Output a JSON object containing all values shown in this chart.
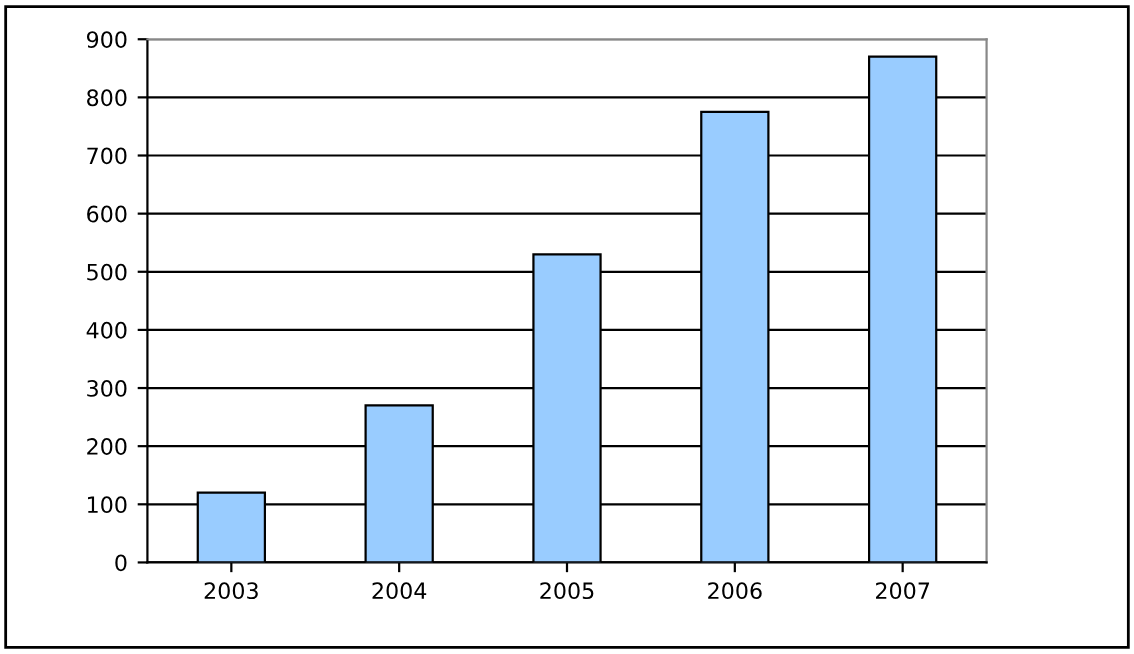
{
  "chart_data": {
    "type": "bar",
    "categories": [
      "2003",
      "2004",
      "2005",
      "2006",
      "2007"
    ],
    "values": [
      120,
      270,
      530,
      775,
      870
    ],
    "color": "#99ccff",
    "ylim": [
      0,
      900
    ],
    "yticks": [
      0,
      100,
      200,
      300,
      400,
      500,
      600,
      700,
      800,
      900
    ],
    "grid": "y"
  }
}
